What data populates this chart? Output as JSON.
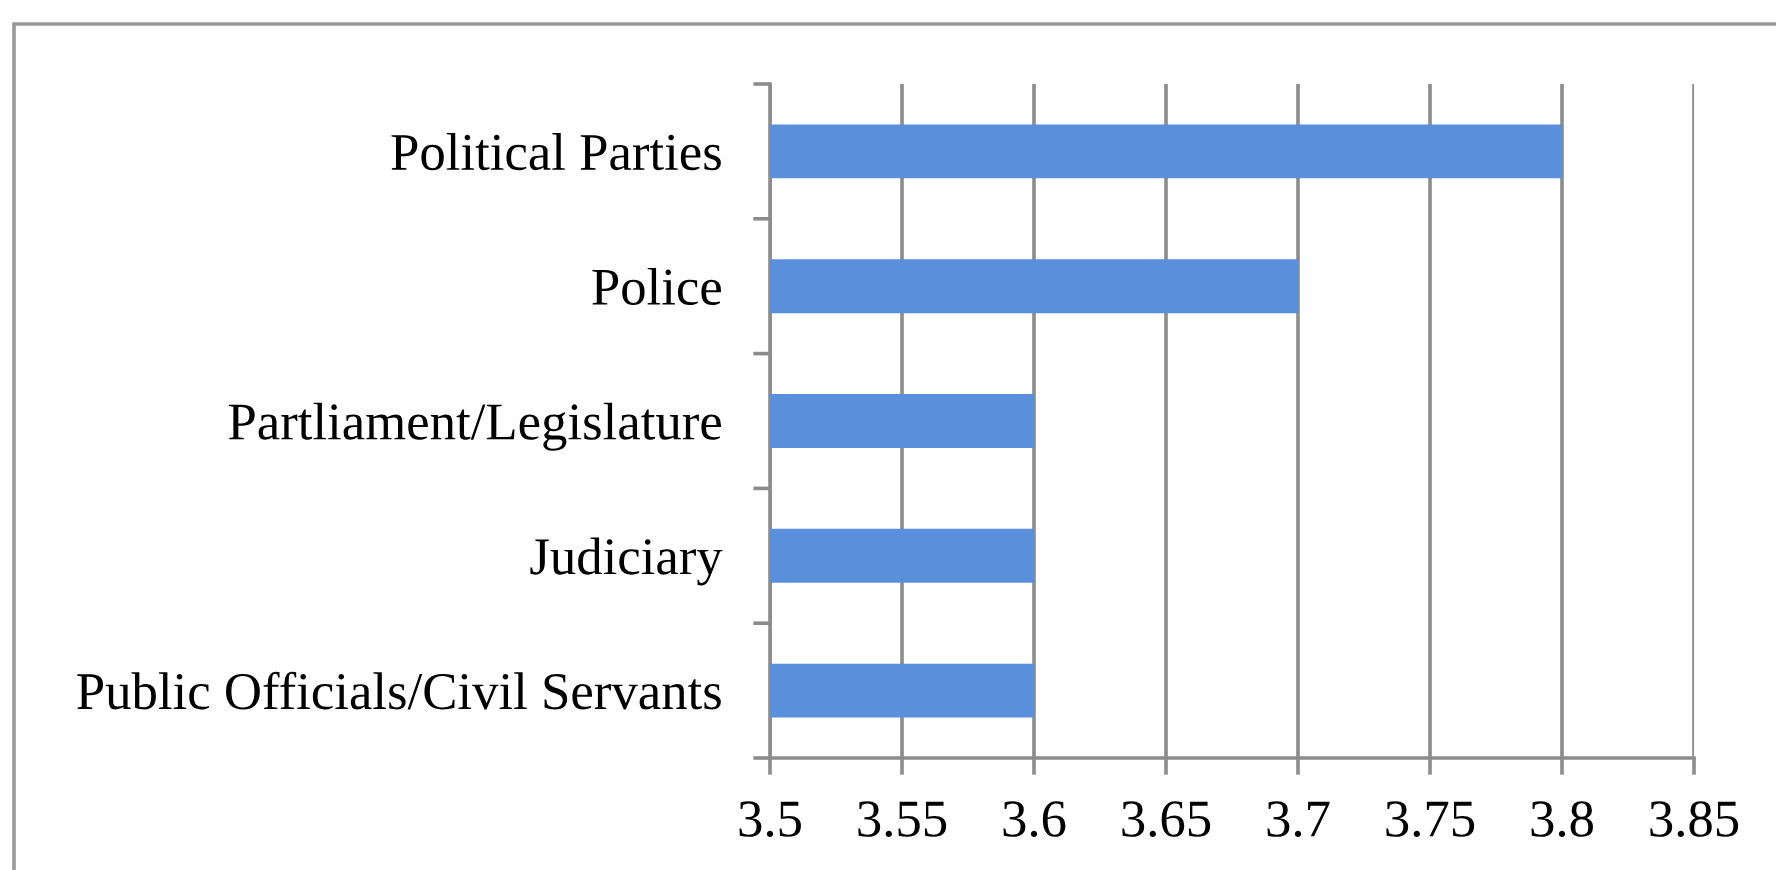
{
  "chart_data": {
    "type": "bar",
    "orientation": "horizontal",
    "categories": [
      "Political Parties",
      "Police",
      "Partliament/Legislature",
      "Judiciary",
      "Public Officials/Civil Servants"
    ],
    "values": [
      3.8,
      3.7,
      3.6,
      3.6,
      3.6
    ],
    "color": "#5a8fdc",
    "xlim": [
      3.5,
      3.85
    ],
    "xticks": [
      3.5,
      3.55,
      3.6,
      3.65,
      3.7,
      3.75,
      3.8,
      3.85
    ],
    "grid": "x"
  }
}
